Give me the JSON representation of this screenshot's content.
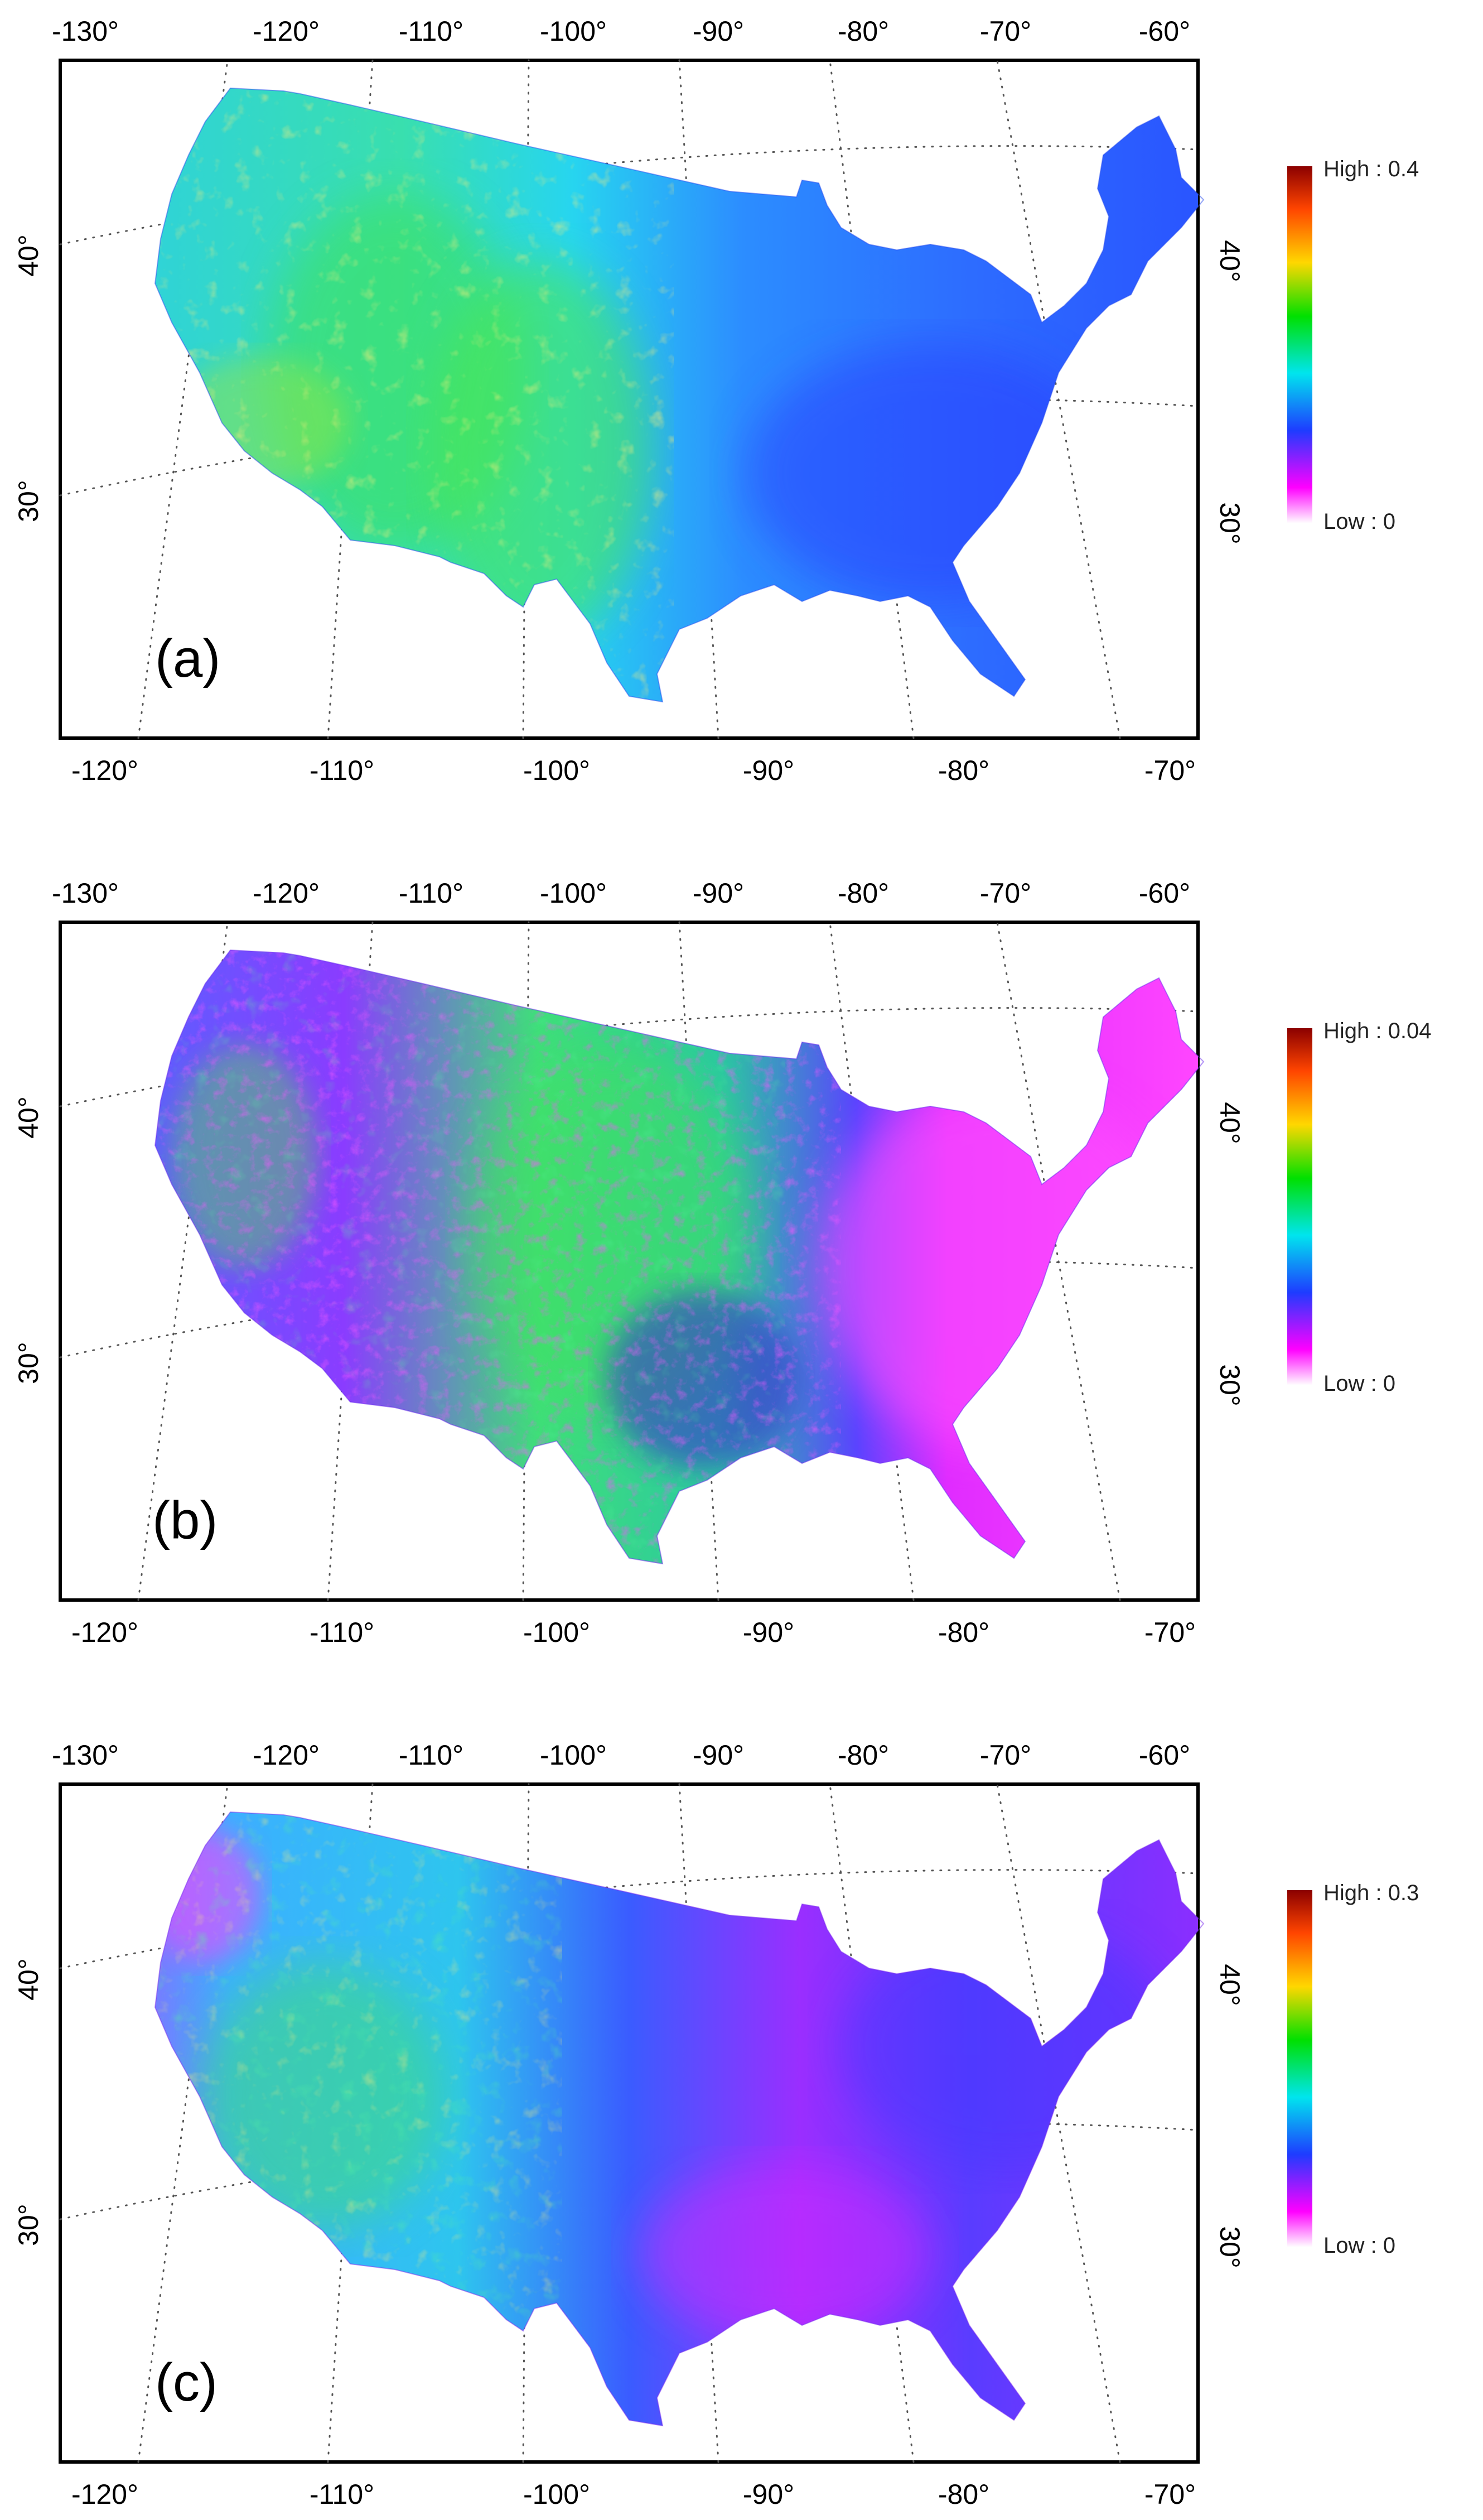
{
  "panels": [
    {
      "label": "(a)",
      "top_ticks": [
        "-130°",
        "-120°",
        "-110°",
        "-100°",
        "-90°",
        "-80°",
        "-70°",
        "-60°"
      ],
      "bottom_ticks": [
        "-120°",
        "-110°",
        "-100°",
        "-90°",
        "-80°",
        "-70°"
      ],
      "left_ticks": [
        "40°",
        "30°"
      ],
      "right_ticks": [
        "40°",
        "30°"
      ],
      "legend": {
        "high": "High : 0.4",
        "low": "Low : 0",
        "max_value": 0.4,
        "min_value": 0
      },
      "dominant_colors": [
        "#22ddee",
        "#3a7dff",
        "#44ee66",
        "#2255ff"
      ]
    },
    {
      "label": "(b)",
      "top_ticks": [
        "-130°",
        "-120°",
        "-110°",
        "-100°",
        "-90°",
        "-80°",
        "-70°",
        "-60°"
      ],
      "bottom_ticks": [
        "-120°",
        "-110°",
        "-100°",
        "-90°",
        "-80°",
        "-70°"
      ],
      "left_ticks": [
        "40°",
        "30°"
      ],
      "right_ticks": [
        "40°",
        "30°"
      ],
      "legend": {
        "high": "High : 0.04",
        "low": "Low : 0",
        "max_value": 0.04,
        "min_value": 0
      },
      "dominant_colors": [
        "#7a3cff",
        "#33dd66",
        "#ff33ff",
        "#2a6bff"
      ]
    },
    {
      "label": "(c)",
      "top_ticks": [
        "-130°",
        "-120°",
        "-110°",
        "-100°",
        "-90°",
        "-80°",
        "-70°",
        "-60°"
      ],
      "bottom_ticks": [
        "-120°",
        "-110°",
        "-100°",
        "-90°",
        "-80°",
        "-70°"
      ],
      "left_ticks": [
        "40°",
        "30°"
      ],
      "right_ticks": [
        "40°",
        "30°"
      ],
      "legend": {
        "high": "High : 0.3",
        "low": "Low : 0",
        "max_value": 0.3,
        "min_value": 0
      },
      "dominant_colors": [
        "#3d50ff",
        "#9c2cff",
        "#22d0ee",
        "#e02bff"
      ]
    }
  ],
  "colorbar_stops": [
    "#8b0000",
    "#ff4500",
    "#ffd700",
    "#00e000",
    "#00e5ee",
    "#1e3cff",
    "#ff00ff",
    "#ffffff"
  ]
}
